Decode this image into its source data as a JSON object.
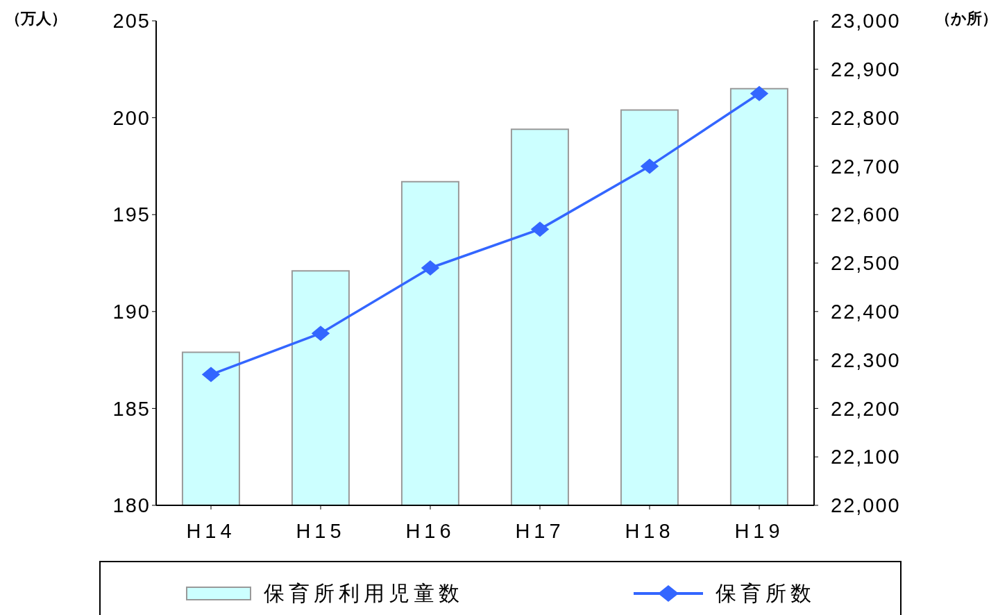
{
  "chart_data": {
    "type": "bar",
    "ylabel": "（万人）",
    "y2label": "（か所）",
    "categories": [
      "H14",
      "H15",
      "H16",
      "H17",
      "H18",
      "H19"
    ],
    "series": [
      {
        "name": "保育所利用児童数",
        "color": "#ccffff",
        "values": [
          187.9,
          192.1,
          196.7,
          199.4,
          200.4,
          201.5
        ]
      },
      {
        "name": "保育所数",
        "type": "line",
        "axis": "y2",
        "color": "#3366ff",
        "marker": "diamond",
        "values": [
          22270,
          22355,
          22490,
          22570,
          22700,
          22850
        ]
      }
    ],
    "ylim": [
      180,
      205
    ],
    "yticks": [
      180,
      185,
      190,
      195,
      200,
      205
    ],
    "y2lim": [
      22000,
      23000
    ],
    "y2ticks": [
      {
        "value": 22000,
        "label": "22,000"
      },
      {
        "value": 22100,
        "label": "22,100"
      },
      {
        "value": 22200,
        "label": "22,200"
      },
      {
        "value": 22300,
        "label": "22,300"
      },
      {
        "value": 22400,
        "label": "22,400"
      },
      {
        "value": 22500,
        "label": "22,500"
      },
      {
        "value": 22600,
        "label": "22,600"
      },
      {
        "value": 22700,
        "label": "22,700"
      },
      {
        "value": 22800,
        "label": "22,800"
      },
      {
        "value": 22900,
        "label": "22,900"
      },
      {
        "value": 23000,
        "label": "23,000"
      }
    ],
    "grid": false,
    "legend": "bottom"
  }
}
